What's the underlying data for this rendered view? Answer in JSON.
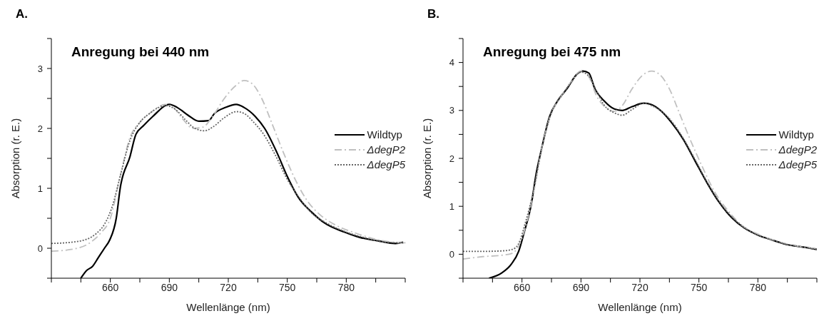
{
  "chart_data": [
    {
      "type": "line",
      "title": "Anregung bei 440 nm",
      "xlabel": "Wellenlänge (nm)",
      "ylabel": "Absorption (r. E.)",
      "annotations": [
        "A."
      ],
      "legend": "right",
      "xlim": [
        630,
        810
      ],
      "ylim": [
        -0.5,
        3.5
      ],
      "xticks": [
        {
          "value": 630,
          "label": null
        },
        {
          "value": 645,
          "label": null
        },
        660,
        {
          "value": 675,
          "label": null
        },
        690,
        {
          "value": 705,
          "label": null
        },
        720,
        {
          "value": 735,
          "label": null
        },
        750,
        {
          "value": 765,
          "label": null
        },
        780,
        {
          "value": 795,
          "label": null
        },
        {
          "value": 810,
          "label": null
        }
      ],
      "yticks": [
        {
          "value": -0.5,
          "label": null
        },
        0,
        {
          "value": 0.5,
          "label": null
        },
        1,
        {
          "value": 1.5,
          "label": null
        },
        2,
        {
          "value": 2.5,
          "label": null
        },
        3,
        {
          "value": 3.5,
          "label": null
        }
      ],
      "series": [
        {
          "name": "Wildtyp",
          "color": "#000000",
          "line_style": "solid",
          "x": [
            645,
            648,
            651,
            654,
            657,
            659.7,
            663,
            665,
            670,
            673,
            677,
            681.6,
            690,
            694,
            699.5,
            705,
            710,
            713,
            718.6,
            724,
            728,
            733.7,
            738.5,
            744.7,
            750,
            755.6,
            762.5,
            769,
            779,
            787,
            796.7,
            805,
            809
          ],
          "values": [
            -0.5,
            -0.37,
            -0.3,
            -0.15,
            0,
            0.14,
            0.5,
            1,
            1.53,
            1.9,
            2.05,
            2.2,
            2.4,
            2.35,
            2.22,
            2.12,
            2.13,
            2.25,
            2.35,
            2.4,
            2.35,
            2.2,
            2,
            1.6,
            1.2,
            0.85,
            0.6,
            0.42,
            0.27,
            0.18,
            0.12,
            0.08,
            0.1
          ]
        },
        {
          "name": "ΔdegP2",
          "color": "#c0c0c0",
          "line_style": "dashed",
          "x": [
            630,
            640,
            650,
            655,
            660,
            665,
            670,
            675,
            680,
            688,
            692,
            697,
            702,
            707,
            712,
            718,
            724,
            728,
            732,
            737,
            742,
            748,
            754,
            760,
            767,
            775,
            785,
            795,
            810
          ],
          "values": [
            -0.05,
            -0.02,
            0.1,
            0.25,
            0.5,
            1.2,
            1.85,
            2.1,
            2.25,
            2.4,
            2.35,
            2.15,
            2,
            2.02,
            2.2,
            2.5,
            2.72,
            2.8,
            2.75,
            2.5,
            2.1,
            1.6,
            1.15,
            0.8,
            0.55,
            0.38,
            0.25,
            0.15,
            0.08
          ]
        },
        {
          "name": "ΔdegP5",
          "color": "#666666",
          "line_style": "dotted",
          "x": [
            630,
            640,
            648,
            653,
            657,
            661,
            665,
            670,
            675,
            680,
            688,
            693,
            698,
            703,
            708,
            712,
            718,
            724,
            728,
            733,
            738,
            744,
            750,
            756,
            762,
            770,
            780,
            790,
            800,
            810
          ],
          "values": [
            0.08,
            0.1,
            0.15,
            0.25,
            0.4,
            0.7,
            1.2,
            1.8,
            2.1,
            2.25,
            2.38,
            2.32,
            2.15,
            2,
            1.96,
            2.02,
            2.18,
            2.28,
            2.25,
            2.1,
            1.9,
            1.55,
            1.15,
            0.85,
            0.6,
            0.42,
            0.27,
            0.17,
            0.1,
            0.09
          ]
        }
      ]
    },
    {
      "type": "line",
      "title": "Anregung bei 475 nm",
      "xlabel": "Wellenlänge (nm)",
      "ylabel": "Absorption (r. E.)",
      "annotations": [
        "B."
      ],
      "legend": "right",
      "xlim": [
        630,
        810
      ],
      "ylim": [
        -0.5,
        4.5
      ],
      "xticks": [
        {
          "value": 630,
          "label": null
        },
        {
          "value": 645,
          "label": null
        },
        660,
        {
          "value": 675,
          "label": null
        },
        690,
        {
          "value": 705,
          "label": null
        },
        720,
        {
          "value": 735,
          "label": null
        },
        750,
        {
          "value": 765,
          "label": null
        },
        780,
        {
          "value": 795,
          "label": null
        },
        {
          "value": 810,
          "label": null
        }
      ],
      "yticks": [
        {
          "value": -0.5,
          "label": null
        },
        0,
        {
          "value": 0.5,
          "label": null
        },
        1,
        {
          "value": 1.5,
          "label": null
        },
        2,
        {
          "value": 2.5,
          "label": null
        },
        3,
        {
          "value": 3.5,
          "label": null
        },
        4,
        {
          "value": 4.5,
          "label": null
        }
      ],
      "series": [
        {
          "name": "Wildtyp",
          "color": "#000000",
          "line_style": "solid",
          "x": [
            643.2,
            649.7,
            654.7,
            658.3,
            661,
            665,
            667,
            669.8,
            674,
            678,
            683,
            688,
            691,
            694,
            697,
            702,
            707,
            711,
            716,
            722,
            726,
            731,
            736,
            742,
            748,
            754,
            760,
            767,
            773,
            780,
            787,
            795,
            803,
            810
          ],
          "values": [
            -0.5,
            -0.39,
            -0.2,
            0.06,
            0.44,
            1.1,
            1.63,
            2.17,
            2.87,
            3.19,
            3.46,
            3.76,
            3.82,
            3.78,
            3.46,
            3.19,
            3.03,
            3,
            3.08,
            3.15,
            3.12,
            2.98,
            2.75,
            2.4,
            1.95,
            1.5,
            1.1,
            0.75,
            0.55,
            0.4,
            0.3,
            0.2,
            0.15,
            0.1
          ]
        },
        {
          "name": "ΔdegP2",
          "color": "#c0c0c0",
          "line_style": "dashed",
          "x": [
            630,
            640,
            650,
            655,
            658,
            662,
            666,
            670,
            675,
            680,
            685,
            690,
            694,
            698,
            703,
            707,
            711,
            716,
            721,
            726,
            730,
            735,
            740,
            746,
            752,
            758,
            765,
            772,
            780,
            790,
            800,
            810
          ],
          "values": [
            -0.1,
            -0.05,
            -0.02,
            0.02,
            0.15,
            0.6,
            1.3,
            2.2,
            2.95,
            3.3,
            3.6,
            3.82,
            3.7,
            3.3,
            3.05,
            2.98,
            3.1,
            3.45,
            3.72,
            3.82,
            3.75,
            3.45,
            2.95,
            2.35,
            1.8,
            1.3,
            0.9,
            0.6,
            0.42,
            0.27,
            0.17,
            0.12
          ]
        },
        {
          "name": "ΔdegP5",
          "color": "#666666",
          "line_style": "dotted",
          "x": [
            630,
            640,
            650,
            655,
            658,
            662,
            666,
            670,
            675,
            680,
            685,
            690,
            694,
            698,
            702,
            707,
            711,
            716,
            722,
            726,
            731,
            736,
            742,
            748,
            754,
            760,
            767,
            773,
            780,
            787,
            795,
            803,
            810
          ],
          "values": [
            0.06,
            0.06,
            0.07,
            0.1,
            0.2,
            0.7,
            1.35,
            2.2,
            2.95,
            3.3,
            3.58,
            3.8,
            3.72,
            3.4,
            3.1,
            2.95,
            2.9,
            3.02,
            3.15,
            3.1,
            2.98,
            2.78,
            2.42,
            1.98,
            1.52,
            1.12,
            0.77,
            0.56,
            0.4,
            0.3,
            0.2,
            0.15,
            0.1
          ]
        }
      ]
    }
  ]
}
